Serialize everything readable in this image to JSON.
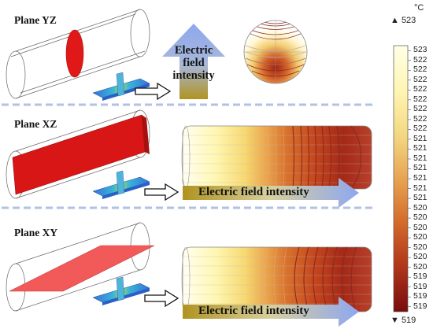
{
  "panels": [
    {
      "label": "Plane YZ",
      "arrow_text": "Electric field intensity",
      "arrow_dir": "up"
    },
    {
      "label": "Plane XZ",
      "arrow_text": "Electric field intensity",
      "arrow_dir": "right"
    },
    {
      "label": "Plane XY",
      "arrow_text": "Electric field intensity",
      "arrow_dir": "right"
    }
  ],
  "vertical_arrow_lines": [
    "Electric",
    "field",
    "intensity"
  ],
  "colorbar": {
    "unit": "°C",
    "max_label": "▲ 523",
    "min_label": "▼ 519",
    "ticks": [
      "523",
      "522",
      "522",
      "522",
      "522",
      "522",
      "522",
      "522",
      "522",
      "521",
      "521",
      "521",
      "521",
      "521",
      "521",
      "521",
      "520",
      "520",
      "520",
      "520",
      "520",
      "520",
      "520",
      "519",
      "519",
      "519",
      "519"
    ],
    "colors": [
      "#ffffe8",
      "#fff8b8",
      "#f7e48a",
      "#f0c968",
      "#e8a050",
      "#d8722f",
      "#c4451e",
      "#a52515",
      "#7a0c0c"
    ]
  },
  "colors": {
    "plane_red": "#e01818",
    "plane_light_red": "#f25a5a",
    "arrow_blue": "#8fa6ee",
    "arrow_gold": "#b39322",
    "separator": "#9fb2e0",
    "contour": "#8a2a20"
  }
}
